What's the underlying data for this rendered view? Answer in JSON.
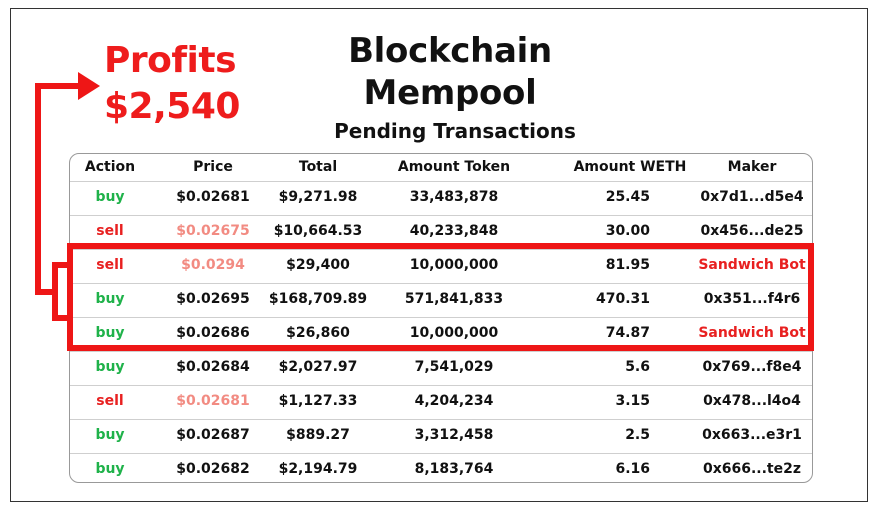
{
  "profits": {
    "line1": "Profits",
    "line2": "$2,540"
  },
  "title": {
    "line1": "Blockchain",
    "line2": "Mempool"
  },
  "subtitle": "Pending Transactions",
  "table": {
    "headers": {
      "action": "Action",
      "price": "Price",
      "total": "Total",
      "amount_token": "Amount Token",
      "amount_weth": "Amount WETH",
      "maker": "Maker"
    },
    "rows": [
      {
        "action": "buy",
        "price": "$0.02681",
        "total": "$9,271.98",
        "amount_token": "33,483,878",
        "amount_weth": "25.45",
        "maker": "0x7d1...d5e4"
      },
      {
        "action": "sell",
        "price": "$0.02675",
        "total": "$10,664.53",
        "amount_token": "40,233,848",
        "amount_weth": "30.00",
        "maker": "0x456...de25"
      },
      {
        "action": "sell",
        "price": "$0.0294",
        "total": "$29,400",
        "amount_token": "10,000,000",
        "amount_weth": "81.95",
        "maker": "Sandwich Bot"
      },
      {
        "action": "buy",
        "price": "$0.02695",
        "total": "$168,709.89",
        "amount_token": "571,841,833",
        "amount_weth": "470.31",
        "maker": "0x351...f4r6"
      },
      {
        "action": "buy",
        "price": "$0.02686",
        "total": "$26,860",
        "amount_token": "10,000,000",
        "amount_weth": "74.87",
        "maker": "Sandwich Bot"
      },
      {
        "action": "buy",
        "price": "$0.02684",
        "total": "$2,027.97",
        "amount_token": "7,541,029",
        "amount_weth": "5.6",
        "maker": "0x769...f8e4"
      },
      {
        "action": "sell",
        "price": "$0.02681",
        "total": "$1,127.33",
        "amount_token": "4,204,234",
        "amount_weth": "3.15",
        "maker": "0x478...l4o4"
      },
      {
        "action": "buy",
        "price": "$0.02687",
        "total": "$889.27",
        "amount_token": "3,312,458",
        "amount_weth": "2.5",
        "maker": "0x663...e3r1"
      },
      {
        "action": "buy",
        "price": "$0.02682",
        "total": "$2,194.79",
        "amount_token": "8,183,764",
        "amount_weth": "6.16",
        "maker": "0x666...te2z"
      }
    ]
  },
  "colors": {
    "buy": "#1fb24a",
    "sell": "#e82020",
    "sell_price": "#f28b82",
    "highlight": "#ee1616",
    "sandwich_bot": "#e82020"
  }
}
